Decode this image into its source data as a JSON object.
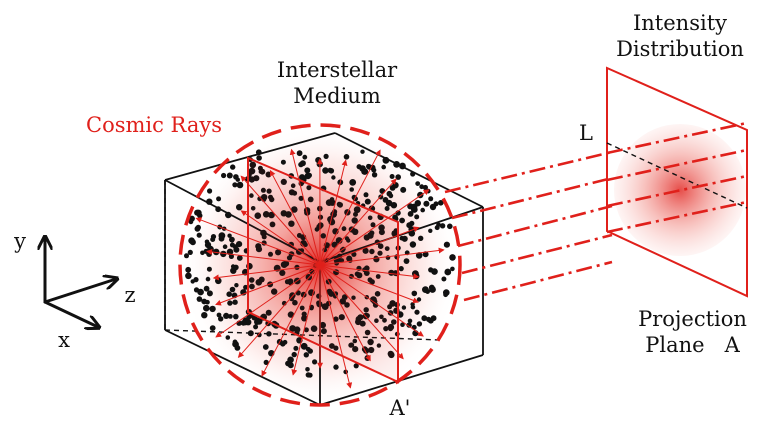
{
  "labels": {
    "interstellar_medium_line1": "Interstellar",
    "interstellar_medium_line2": "Medium",
    "cosmic_rays": "Cosmic Rays",
    "intensity_line1": "Intensity",
    "intensity_line2": "Distribution",
    "projection_line1": "Projection",
    "projection_line2": "Plane   A",
    "point_L": "L",
    "point_A_prime": "A'",
    "axis_x": "x",
    "axis_y": "y",
    "axis_z": "z"
  },
  "colors": {
    "accent_red": "#e0201b",
    "outline": "#111111",
    "dot": "#111111"
  }
}
